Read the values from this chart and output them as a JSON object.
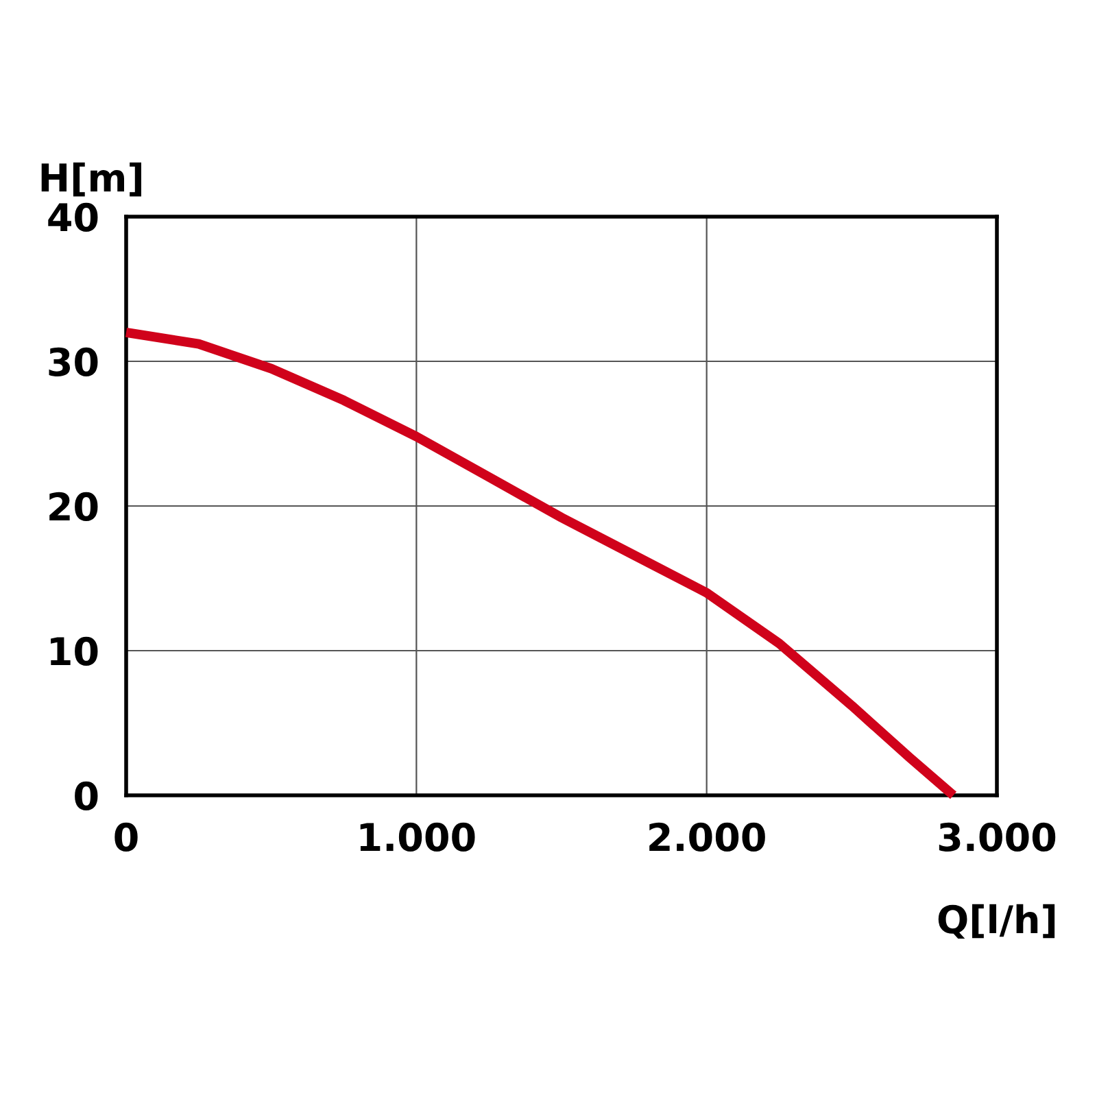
{
  "chart_data": {
    "type": "line",
    "xlabel": "Q[l/h]",
    "ylabel": "H[m]",
    "series": [
      {
        "color": "#d0021b",
        "x": [
          0,
          250,
          500,
          750,
          1000,
          1250,
          1500,
          1750,
          2000,
          2250,
          2500,
          2700,
          2850
        ],
        "values": [
          32,
          31.2,
          29.5,
          27.3,
          24.8,
          22.0,
          19.2,
          16.6,
          14.0,
          10.5,
          6.2,
          2.6,
          0
        ]
      }
    ],
    "xlim": [
      0,
      3000
    ],
    "xticks": [
      0,
      {
        "value": 1000,
        "label": "1.000"
      },
      {
        "value": 2000,
        "label": "2.000"
      },
      {
        "value": 3000,
        "label": "3.000"
      }
    ],
    "ylim": [
      0,
      40
    ],
    "yticks": [
      0,
      10,
      20,
      30,
      40
    ],
    "grid": true,
    "legend": false,
    "marker": "none",
    "line_style": "solid"
  }
}
